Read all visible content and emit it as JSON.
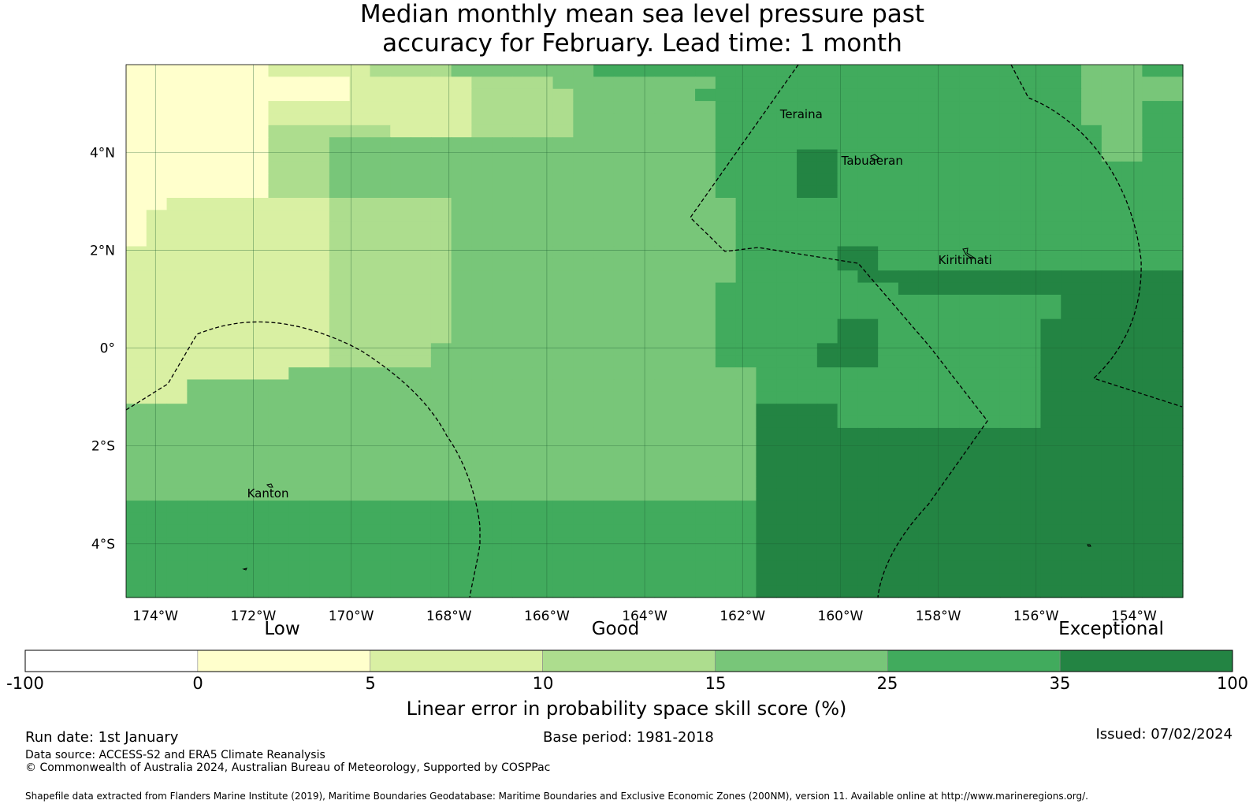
{
  "title": {
    "line1": "Median monthly mean sea level pressure past",
    "line2": "accuracy for February. Lead time: 1 month"
  },
  "map": {
    "lon_range": [
      -174.6,
      -153.0
    ],
    "lat_range": [
      -5.1,
      5.8
    ],
    "grid_lons": [
      -174,
      -172,
      -170,
      -168,
      -166,
      -164,
      -162,
      -160,
      -158,
      -156,
      -154
    ],
    "grid_lats": [
      4,
      2,
      0,
      -2,
      -4
    ],
    "lon_labels": [
      "174°W",
      "172°W",
      "170°W",
      "168°W",
      "166°W",
      "164°W",
      "162°W",
      "160°W",
      "158°W",
      "156°W",
      "154°W"
    ],
    "lat_labels": [
      "4°N",
      "2°N",
      "0°",
      "2°S",
      "4°S"
    ],
    "places": [
      {
        "name": "Teraina",
        "lon": -160.8,
        "lat": 4.7
      },
      {
        "name": "Tabuaeran",
        "lon": -159.35,
        "lat": 3.75
      },
      {
        "name": "Kiritimati",
        "lon": -157.45,
        "lat": 1.72
      },
      {
        "name": "Kanton",
        "lon": -171.7,
        "lat": -3.05
      }
    ],
    "skill_grid": {
      "legend": "0=-100..0, 1=0..5, 2=5..10, 3=10..15, 4=15..25, 5=25..35, 6=35..100",
      "rows_north_to_south": [
        "1111111222223333444444455555555555555555555555544455",
        "1111111111122222233334444444455555555555555555544444",
        "1111111111122222233333444444555555555555555555544444",
        "1111111222222222233333444444455555555555555555544455",
        "1111111222222222233333444444455555555555555555544455",
        "1111111333333222233333444444455555555555555555554455",
        "1111111333444444444444444444455555555555555555554455",
        "1111111333444444444444444444455556655555555555554455",
        "1111111333444444444444444444455556655555555555555555",
        "1111111333444444444444444444455556655555555555555555",
        "1111111333444444444444444444455556655555555555555555",
        "1122222222333333444444444444445555555555555555555555",
        "1222222222333333444444444444445555555555555555555555",
        "1222222222333333444444444444445555555555555555555555",
        "1222222222333333444444444444445555555555555555555555",
        "2222222222333333444444444444445555566555555555555555",
        "2222222222333333444444444444445555566555555555555555",
        "2222222222333333444444444444445555556666666666666666",
        "2222222222333333444444444444455555555566666666666666",
        "2222222222333333444444444444455555555555555555666666",
        "2222222222333333444444444444455555555555555555666666",
        "2222222222333333444444444444455555566555555556666666",
        "2222222222333333444444444444455555566555555556666666",
        "2222222222333334444444444444455555666555555556666666",
        "2222222222333334444444444444455555666555555556666666",
        "2222222244444444444444444444444555555555555556666666",
        "2224444444444444444444444444444555555555555556666666",
        "2224444444444444444444444444444555555555555556666666",
        "4444444444444444444444444444444666655555555556666666",
        "4444444444444444444444444444444666655555555556666666",
        "4444444444444444444444444444444666666666666666666666",
        "4444444444444444444444444444444666666666666666666666",
        "4444444444444444444444444444444666666666666666666666",
        "4444444444444444444444444444444666666666666666666666",
        "4444444444444444444444444444444666666666666666666666",
        "4444444444444444444444444444444666666666666666666666",
        "5555555555555555555555555555555666666666666666666666",
        "5555555555555555555555555555555666666666666666666666",
        "5555555555555555555555555555555666666666666666666666",
        "5555555555555555555555555555555666666666666666666666",
        "5555555555555555555555555555555666666666666666666666",
        "5555555555555555555555555555555666666666666666666666",
        "5555555555555555555555555555555666666666666666666666",
        "5555555555555555555555555555555666666666666666666666"
      ]
    }
  },
  "colorbar": {
    "category_labels": [
      "Low",
      "Good",
      "Exceptional"
    ],
    "ticks": [
      "-100",
      "0",
      "5",
      "10",
      "15",
      "25",
      "35",
      "100"
    ],
    "colors": [
      "#ffffff",
      "#ffffcc",
      "#d9f0a3",
      "#addd8e",
      "#78c679",
      "#41ab5d",
      "#238443"
    ],
    "axis_title": "Linear error in probability space skill score (%)"
  },
  "footer": {
    "run_date": "Run date: 1st January",
    "base_period": "Base period: 1981-2018",
    "issued": "Issued: 07/02/2024",
    "data_source": "Data source: ACCESS-S2 and ERA5 Climate Reanalysis",
    "copyright": "© Commonwealth of Australia 2024, Australian Bureau of Meteorology, Supported by COSPPac",
    "shapefile": "Shapefile data extracted from Flanders Marine Institute (2019), Maritime Boundaries Geodatabase: Maritime Boundaries and Exclusive Economic Zones (200NM), version 11. Available online at http://www.marineregions.org/."
  }
}
